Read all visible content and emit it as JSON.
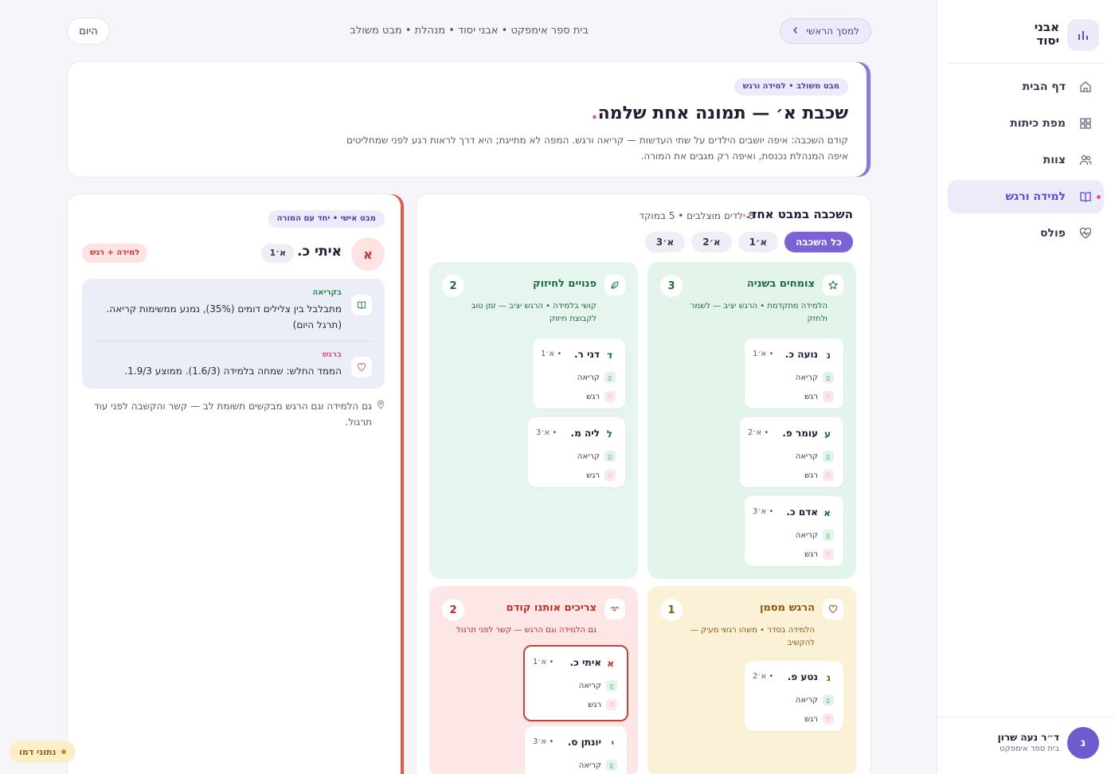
{
  "sidebar": {
    "brand": "אבני יסוד",
    "brand_line1": "אבני",
    "brand_line2": "יסוד",
    "items": [
      {
        "label": "דף הבית",
        "icon": "home-icon"
      },
      {
        "label": "מפת כיתות",
        "icon": "grid-icon"
      },
      {
        "label": "צוות",
        "icon": "users-icon"
      },
      {
        "label": "למידה ורגש",
        "icon": "book-icon",
        "active": true
      },
      {
        "label": "פולס",
        "icon": "heart-pulse-icon"
      }
    ],
    "user": {
      "initial": "נ",
      "name": "ד״ר נעה שרון",
      "school": "בית ספר אימפקט"
    }
  },
  "topbar": {
    "back_label": "למסך הראשי",
    "breadcrumb": "בית ספר אימפקט • אבני יסוד • מנהלת • מבט משולב",
    "today_label": "היום"
  },
  "hero": {
    "pill": "מבט משולב • למידה ורגש",
    "title": "שכבת א׳ — תמונה אחת שלמה",
    "description": "קודם השכבה: איפה יושבים הילדים על שתי העדשות — קריאה ורגש. המפה לא מתייגת; היא דרך לראות רגע לפני שמחליטים איפה המנהלת נכנסת, ואיפה רק מגבים את המורה."
  },
  "grade_panel": {
    "title": "השכבה במבט אחד",
    "subtitle": "8 ילדים מוצלבים • 5 במוקד",
    "filters": [
      "כל השכבה",
      "א׳1",
      "א׳2",
      "א׳3"
    ],
    "quadrants": [
      {
        "title": "צומחים בשניה",
        "count": "3",
        "description": "הלמידה מתקדמת • הרגש יציב — לשמר ולחזק",
        "icon": "star-icon",
        "students": [
          {
            "initial": "נ",
            "name": "נועה כ.",
            "cls": "• א׳1"
          },
          {
            "initial": "ע",
            "name": "עומר פ.",
            "cls": "• א׳2"
          },
          {
            "initial": "א",
            "name": "אדם כ.",
            "cls": "• א׳3"
          }
        ]
      },
      {
        "title": "פנויים לחיזוק",
        "count": "2",
        "description": "קושי בלמידה • הרגש יציב — זמן טוב לקבוצת חיזוק",
        "icon": "leaf-icon",
        "students": [
          {
            "initial": "ד",
            "name": "דני ר.",
            "cls": "• א׳1"
          },
          {
            "initial": "ל",
            "name": "ליה מ.",
            "cls": "• א׳3"
          }
        ]
      },
      {
        "title": "הרגש מסמן",
        "count": "1",
        "description": "הלמידה בסדר • משהו רגשי מעיק — להקשיב",
        "icon": "heart-outline-icon",
        "students": [
          {
            "initial": "נ",
            "name": "נטע פ.",
            "cls": "• א׳2"
          }
        ]
      },
      {
        "title": "צריכים אותנו קודם",
        "count": "2",
        "description": "גם הלמידה וגם הרגש — קשר לפני תרגול",
        "icon": "handshake-icon",
        "students": [
          {
            "initial": "א",
            "name": "איתי כ.",
            "cls": "• א׳1"
          },
          {
            "initial": "י",
            "name": "יונתן ס.",
            "cls": "• א׳3"
          }
        ]
      }
    ],
    "row_labels": {
      "read": "קריאה",
      "feel": "רגש"
    }
  },
  "profile": {
    "pill": "מבט אישי • יחד עם המורה",
    "initial": "א",
    "name": "איתי כ.",
    "cls": "א׳1",
    "tag": "למידה + רגש",
    "reading_label": "בקריאה",
    "reading_text": "מתבלבל בין צלילים דומים (35%), נמנע ממשימות קריאה. (תרגל היום)",
    "emotion_label": "ברגש",
    "emotion_text": "הממד החלש: שמחה בלמידה (1.6/3). ממוצע 1.9/3.",
    "note": "גם הלמידה וגם הרגש מבקשים תשומת לב — קשר והקשבה לפני עוד תרגול."
  },
  "status_badge": "נתוני דמו",
  "colors": {
    "accent": "#7b62d6",
    "green_bg": "#e3f4ea",
    "mint_bg": "#e6f5ee",
    "yellow_bg": "#fbf1d6",
    "red_bg": "#fde6e6",
    "alert_border": "#c8413a"
  }
}
